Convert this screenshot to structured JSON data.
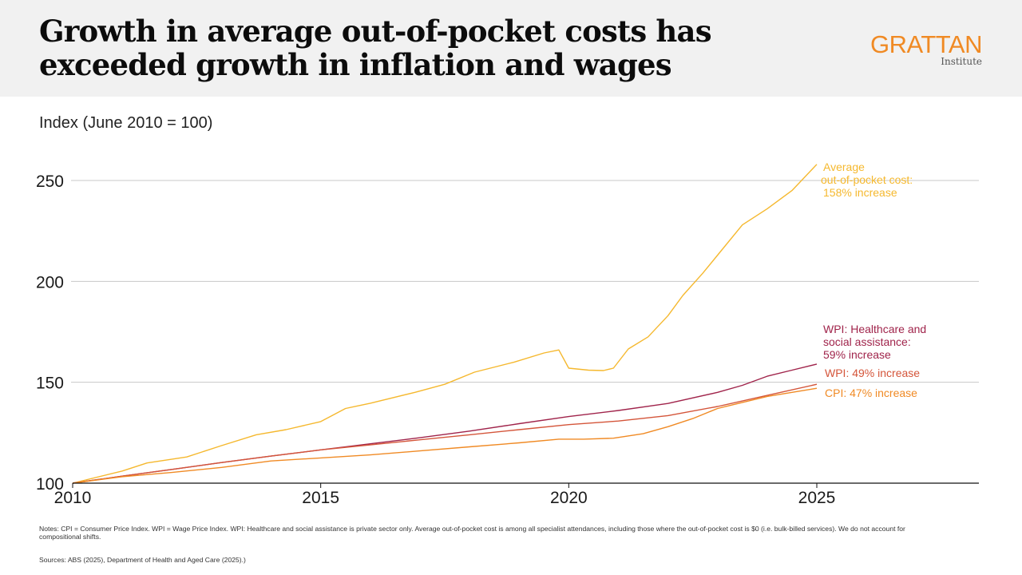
{
  "header": {
    "title": "Growth in average out-of-pocket costs has exceeded growth in inflation and wages",
    "logo_main": "GRATTAN",
    "logo_sub": "Institute"
  },
  "footer": {
    "notes": "Notes: CPI = Consumer Price Index. WPI = Wage Price Index. WPI: Healthcare and social assistance is private sector only. Average out-of-pocket cost is among all specialist attendances, including those where the out-of-pocket cost is $0 (i.e. bulk-billed services). We do not account for compositional shifts.",
    "sources": "Sources: ABS (2025), Department of Health and Aged Care (2025).)"
  },
  "chart_data": {
    "type": "line",
    "title": "Growth in average out-of-pocket costs has exceeded growth in inflation and wages",
    "ylabel": "Index (June 2010 = 100)",
    "xlabel": "",
    "xlim": [
      2010,
      2028.3
    ],
    "ylim": [
      100,
      260
    ],
    "x_ticks": [
      2010,
      2015,
      2020,
      2025
    ],
    "x_tick_labels": [
      "2010",
      "2015",
      "2020",
      "2025"
    ],
    "y_ticks": [
      100,
      150,
      200,
      250
    ],
    "y_tick_labels": [
      "100",
      "150",
      "200",
      "250"
    ],
    "grid": "horizontal",
    "legend": "direct-labels-right",
    "series": [
      {
        "name": "Average out-of-pocket cost",
        "label_lines": [
          "Average",
          "out-of-pocket cost:",
          "158% increase"
        ],
        "color": "#f5b82e",
        "x": [
          2010,
          2011,
          2011.5,
          2012.3,
          2013,
          2013.7,
          2014.3,
          2015,
          2015.5,
          2016,
          2016.9,
          2017.5,
          2018.1,
          2018.9,
          2019.5,
          2019.8,
          2020,
          2020.4,
          2020.7,
          2020.9,
          2021.2,
          2021.6,
          2022,
          2022.3,
          2022.7,
          2023,
          2023.5,
          2024,
          2024.5,
          2025
        ],
        "y": [
          100,
          106,
          110,
          113,
          118.6,
          124,
          126.5,
          130.5,
          137,
          139.6,
          145,
          149,
          155,
          160,
          164.5,
          166,
          157,
          156,
          155.8,
          157,
          166.5,
          172.5,
          183,
          193,
          204,
          213,
          228,
          236,
          245,
          258
        ]
      },
      {
        "name": "WPI: Healthcare and social assistance",
        "label_lines": [
          "WPI: Healthcare and",
          "social assistance:",
          "59% increase"
        ],
        "color": "#a0244b",
        "x": [
          2010,
          2011,
          2012,
          2013,
          2014,
          2015,
          2016,
          2017,
          2018,
          2019,
          2020,
          2021,
          2022,
          2023,
          2023.5,
          2024,
          2024.5,
          2025
        ],
        "y": [
          100,
          103.5,
          106.8,
          110.2,
          113.4,
          116.5,
          119.5,
          122.5,
          125.8,
          129.5,
          133,
          136,
          139.5,
          145,
          148.5,
          153,
          156,
          159
        ]
      },
      {
        "name": "WPI",
        "label_lines": [
          "WPI: 49% increase"
        ],
        "color": "#d4553a",
        "x": [
          2010,
          2011,
          2012,
          2013,
          2014,
          2015,
          2016,
          2017,
          2018,
          2019,
          2020,
          2021,
          2022,
          2023,
          2024,
          2025
        ],
        "y": [
          100,
          103.5,
          106.8,
          110.2,
          113.4,
          116.5,
          119,
          121.5,
          124,
          126.5,
          129,
          130.8,
          133.5,
          138,
          143.5,
          149
        ]
      },
      {
        "name": "CPI",
        "label_lines": [
          "CPI: 47% increase"
        ],
        "color": "#f08a24",
        "x": [
          2010,
          2011,
          2012,
          2013,
          2014,
          2015,
          2016,
          2017,
          2018,
          2019,
          2019.8,
          2020.3,
          2020.9,
          2021.5,
          2022,
          2022.5,
          2023,
          2023.5,
          2024,
          2024.5,
          2025
        ],
        "y": [
          100,
          103.2,
          105.3,
          107.8,
          111,
          112.5,
          114,
          116,
          118,
          120,
          121.8,
          121.8,
          122.3,
          124.5,
          128,
          132,
          137,
          140,
          143,
          145,
          147
        ]
      }
    ]
  }
}
